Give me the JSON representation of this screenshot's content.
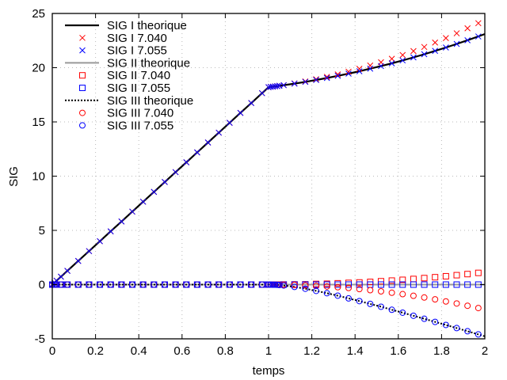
{
  "chart_data": {
    "type": "line",
    "title": "",
    "xlabel": "temps",
    "ylabel": "SIG",
    "xlim": [
      0,
      2
    ],
    "ylim": [
      -5,
      25
    ],
    "xticks": [
      "0",
      "0.2",
      "0.4",
      "0.6",
      "0.8",
      "1",
      "1.2",
      "1.4",
      "1.6",
      "1.8",
      "2"
    ],
    "yticks": [
      "-5",
      "0",
      "5",
      "10",
      "15",
      "20",
      "25"
    ],
    "grid": true,
    "legend_position": "top-left",
    "x": [
      0,
      0.01,
      0.02,
      0.04,
      0.07,
      0.12,
      0.17,
      0.22,
      0.27,
      0.32,
      0.37,
      0.42,
      0.47,
      0.52,
      0.57,
      0.62,
      0.67,
      0.72,
      0.77,
      0.82,
      0.87,
      0.92,
      0.97,
      1.0,
      1.01,
      1.02,
      1.03,
      1.04,
      1.05,
      1.07,
      1.12,
      1.17,
      1.22,
      1.27,
      1.32,
      1.37,
      1.42,
      1.47,
      1.52,
      1.57,
      1.62,
      1.67,
      1.72,
      1.77,
      1.82,
      1.87,
      1.92,
      1.97,
      2.0
    ],
    "series": [
      {
        "name": "SIG I theorique",
        "style": "line",
        "color": "#000000",
        "values": [
          0,
          0.18,
          0.36,
          0.73,
          1.27,
          2.18,
          3.09,
          4.0,
          4.91,
          5.82,
          6.73,
          7.64,
          8.55,
          9.46,
          10.37,
          11.28,
          12.19,
          13.1,
          14.01,
          14.92,
          15.83,
          16.74,
          17.65,
          18.2,
          18.23,
          18.25,
          18.28,
          18.3,
          18.33,
          18.39,
          18.53,
          18.69,
          18.87,
          19.05,
          19.25,
          19.45,
          19.67,
          19.91,
          20.15,
          20.4,
          20.67,
          20.95,
          21.24,
          21.55,
          21.86,
          22.19,
          22.53,
          22.88,
          23.1
        ]
      },
      {
        "name": "SIG I 7.040",
        "style": "cross",
        "color": "#ff0000",
        "values": [
          0,
          0.18,
          0.36,
          0.73,
          1.27,
          2.18,
          3.09,
          4.0,
          4.91,
          5.82,
          6.73,
          7.64,
          8.55,
          9.46,
          10.37,
          11.28,
          12.19,
          13.1,
          14.01,
          14.92,
          15.83,
          16.74,
          17.65,
          18.2,
          18.23,
          18.25,
          18.28,
          18.3,
          18.33,
          18.39,
          18.55,
          18.73,
          18.93,
          19.15,
          19.38,
          19.63,
          19.9,
          20.2,
          20.5,
          20.82,
          21.17,
          21.53,
          21.91,
          22.32,
          22.73,
          23.17,
          23.63,
          24.1,
          null
        ]
      },
      {
        "name": "SIG I 7.055",
        "style": "cross",
        "color": "#0000ff",
        "values": [
          0,
          0.18,
          0.36,
          0.73,
          1.27,
          2.18,
          3.09,
          4.0,
          4.91,
          5.82,
          6.73,
          7.64,
          8.55,
          9.46,
          10.37,
          11.28,
          12.19,
          13.1,
          14.01,
          14.92,
          15.83,
          16.74,
          17.65,
          18.2,
          18.23,
          18.25,
          18.28,
          18.3,
          18.33,
          18.39,
          18.53,
          18.69,
          18.87,
          19.05,
          19.25,
          19.45,
          19.67,
          19.91,
          20.15,
          20.4,
          20.67,
          20.95,
          21.24,
          21.55,
          21.86,
          22.19,
          22.53,
          22.88,
          null
        ]
      },
      {
        "name": "SIG II theorique",
        "style": "line",
        "color": "#999999",
        "values": [
          0,
          0,
          0,
          0,
          0,
          0,
          0,
          0,
          0,
          0,
          0,
          0,
          0,
          0,
          0,
          0,
          0,
          0,
          0,
          0,
          0,
          0,
          0,
          0,
          0,
          0,
          0,
          0,
          0,
          0,
          0,
          0,
          0,
          0,
          0,
          0,
          0,
          0,
          0,
          0,
          0,
          0,
          0,
          0,
          0,
          0,
          0,
          0,
          0
        ]
      },
      {
        "name": "SIG II 7.040",
        "style": "square",
        "color": "#ff0000",
        "values": [
          0,
          0,
          0,
          0,
          0,
          0,
          0,
          0,
          0,
          0,
          0,
          0,
          0,
          0,
          0,
          0,
          0,
          0,
          0,
          0,
          0,
          0,
          0,
          0,
          0,
          0,
          0,
          0,
          0,
          0.01,
          0.02,
          0.03,
          0.06,
          0.08,
          0.12,
          0.16,
          0.2,
          0.25,
          0.31,
          0.37,
          0.44,
          0.52,
          0.6,
          0.68,
          0.77,
          0.87,
          0.97,
          1.08,
          null
        ]
      },
      {
        "name": "SIG II 7.055",
        "style": "square",
        "color": "#0000ff",
        "values": [
          0,
          0,
          0,
          0,
          0,
          0,
          0,
          0,
          0,
          0,
          0,
          0,
          0,
          0,
          0,
          0,
          0,
          0,
          0,
          0,
          0,
          0,
          0,
          0,
          0,
          0,
          0,
          0,
          0,
          0,
          0,
          0,
          0,
          0,
          0,
          0,
          0,
          0,
          0,
          0,
          0,
          0,
          0,
          0,
          0,
          0,
          0,
          0,
          null
        ]
      },
      {
        "name": "SIG III theorique",
        "style": "dotted",
        "color": "#000000",
        "values": [
          0,
          0,
          0,
          0,
          0,
          0,
          0,
          0,
          0,
          0,
          0,
          0,
          0,
          0,
          0,
          0,
          0,
          0,
          0,
          0,
          0,
          0,
          0,
          0,
          0,
          -0.01,
          -0.01,
          -0.02,
          -0.04,
          -0.08,
          -0.21,
          -0.38,
          -0.58,
          -0.79,
          -1.02,
          -1.27,
          -1.52,
          -1.78,
          -2.04,
          -2.32,
          -2.59,
          -2.87,
          -3.15,
          -3.44,
          -3.72,
          -4.01,
          -4.3,
          -4.59,
          -4.77
        ]
      },
      {
        "name": "SIG III 7.040",
        "style": "circle",
        "color": "#ff0000",
        "values": [
          0,
          0,
          0,
          0,
          0,
          0,
          0,
          0,
          0,
          0,
          0,
          0,
          0,
          0,
          0,
          0,
          0,
          0,
          0,
          0,
          0,
          0,
          0,
          0,
          0,
          0,
          0,
          0,
          0,
          -0.01,
          -0.03,
          -0.07,
          -0.11,
          -0.17,
          -0.24,
          -0.31,
          -0.41,
          -0.51,
          -0.62,
          -0.75,
          -0.88,
          -1.03,
          -1.19,
          -1.36,
          -1.55,
          -1.74,
          -1.95,
          -2.16,
          null
        ]
      },
      {
        "name": "SIG III 7.055",
        "style": "circle",
        "color": "#0000ff",
        "values": [
          0,
          0,
          0,
          0,
          0,
          0,
          0,
          0,
          0,
          0,
          0,
          0,
          0,
          0,
          0,
          0,
          0,
          0,
          0,
          0,
          0,
          0,
          0,
          0,
          0,
          -0.01,
          -0.01,
          -0.02,
          -0.04,
          -0.08,
          -0.21,
          -0.38,
          -0.58,
          -0.79,
          -1.02,
          -1.27,
          -1.52,
          -1.78,
          -2.04,
          -2.32,
          -2.59,
          -2.87,
          -3.15,
          -3.44,
          -3.72,
          -4.01,
          -4.3,
          -4.59,
          null
        ]
      }
    ]
  }
}
